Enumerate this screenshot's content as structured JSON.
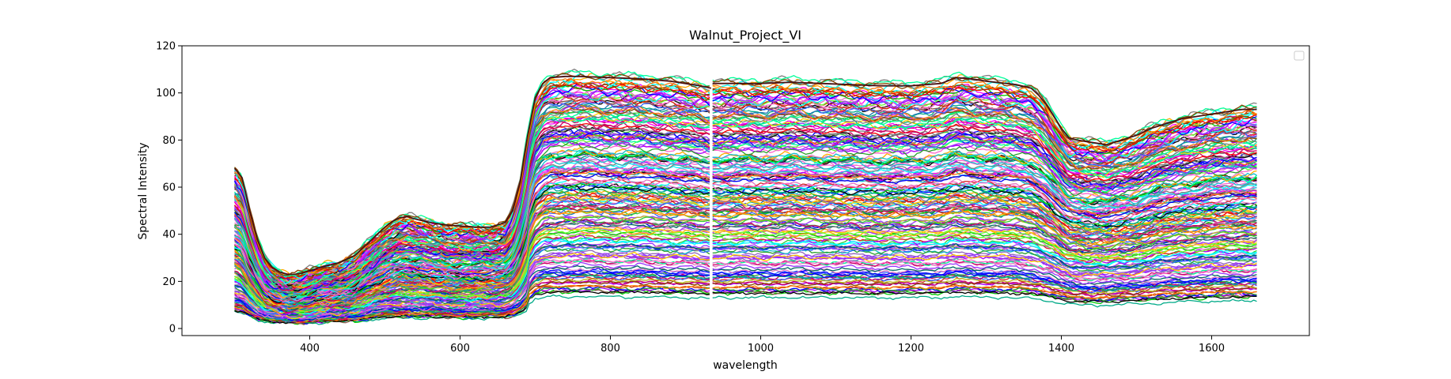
{
  "chart_data": {
    "type": "line",
    "title": "Walnut_Project_VI",
    "xlabel": "wavelength",
    "ylabel": "Spectral Intensity",
    "xlim": [
      230,
      1730
    ],
    "ylim": [
      -3,
      120
    ],
    "xticks": [
      400,
      600,
      800,
      1000,
      1200,
      1400,
      1600
    ],
    "yticks": [
      0,
      20,
      40,
      60,
      80,
      100,
      120
    ],
    "grid": false,
    "legend": "top-right (empty)",
    "x_range": [
      300,
      1660
    ],
    "series_count": 200,
    "notes_discontinuity_at": 935,
    "reference_profile": {
      "x": [
        300,
        310,
        320,
        330,
        340,
        350,
        360,
        370,
        380,
        390,
        400,
        420,
        440,
        460,
        480,
        500,
        510,
        520,
        530,
        540,
        560,
        580,
        600,
        620,
        640,
        660,
        670,
        680,
        690,
        700,
        710,
        720,
        740,
        760,
        800,
        840,
        880,
        920,
        934,
        936,
        960,
        1000,
        1040,
        1080,
        1120,
        1160,
        1200,
        1240,
        1260,
        1280,
        1300,
        1340,
        1360,
        1370,
        1380,
        1390,
        1400,
        1410,
        1420,
        1440,
        1460,
        1480,
        1500,
        1520,
        1540,
        1560,
        1580,
        1600,
        1620,
        1640,
        1660
      ],
      "y": [
        68,
        64,
        50,
        38,
        30,
        26,
        24,
        23,
        23,
        23.5,
        24.5,
        26.5,
        28,
        31,
        37,
        43,
        45.5,
        47,
        47.5,
        46.5,
        45,
        44,
        43.5,
        43,
        43,
        45,
        50,
        62,
        82,
        98,
        104,
        106.5,
        107,
        107,
        106.5,
        106,
        105,
        103,
        102,
        104,
        104,
        104,
        104.5,
        104,
        103.5,
        103,
        103,
        104,
        106.5,
        106,
        105,
        103.5,
        102,
        99,
        95,
        90,
        85,
        81,
        80,
        79,
        78,
        80,
        82,
        85,
        87,
        89,
        90,
        91,
        92,
        93,
        93
      ]
    },
    "extremes": {
      "max_line_color": "#ff00ff",
      "min_line_color": "#2ca02c"
    }
  }
}
